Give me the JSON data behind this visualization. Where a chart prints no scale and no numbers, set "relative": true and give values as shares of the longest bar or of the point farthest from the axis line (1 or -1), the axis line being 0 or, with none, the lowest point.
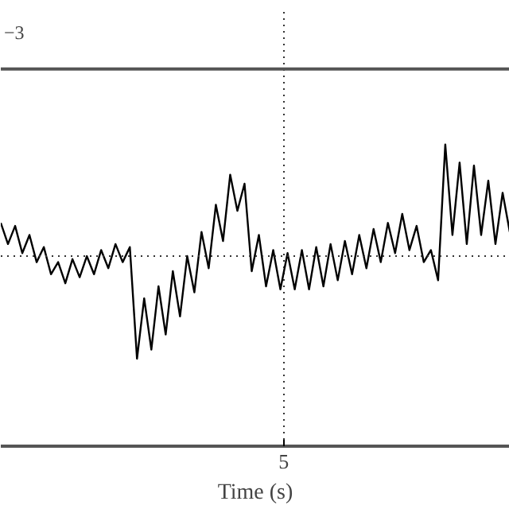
{
  "chart_data": {
    "type": "line",
    "relative": true,
    "xlabel": "Time (s)",
    "annotations": [
      "−3",
      "5"
    ],
    "grid": "x",
    "line_style": "solid",
    "ref_lines": [
      {
        "axis": "y",
        "value": 0.63,
        "line_style": "dotted"
      }
    ],
    "categories": [
      null,
      null,
      null,
      null,
      null,
      null,
      null,
      null,
      null,
      null,
      null,
      null,
      null,
      null,
      null,
      null,
      null,
      null,
      null,
      null,
      null,
      null,
      null,
      null,
      null,
      null,
      null,
      null,
      null,
      null,
      null,
      null,
      null,
      null,
      null,
      null,
      null,
      null,
      null,
      null,
      null,
      null,
      null,
      null,
      null,
      null,
      null,
      null,
      null,
      null,
      null,
      null,
      null,
      null,
      null,
      null,
      null,
      null,
      null,
      null,
      null,
      null,
      null,
      null,
      null,
      null,
      null,
      null,
      null,
      null,
      null,
      null
    ],
    "series": [
      {
        "color": "#000000",
        "values": [
          0.74,
          0.67,
          0.73,
          0.64,
          0.7,
          0.61,
          0.66,
          0.57,
          0.61,
          0.54,
          0.62,
          0.56,
          0.63,
          0.57,
          0.65,
          0.59,
          0.67,
          0.61,
          0.66,
          0.29,
          0.49,
          0.32,
          0.53,
          0.37,
          0.58,
          0.43,
          0.63,
          0.51,
          0.71,
          0.59,
          0.8,
          0.68,
          0.9,
          0.78,
          0.87,
          0.58,
          0.7,
          0.53,
          0.65,
          0.52,
          0.64,
          0.52,
          0.65,
          0.52,
          0.66,
          0.53,
          0.67,
          0.55,
          0.68,
          0.57,
          0.7,
          0.59,
          0.72,
          0.61,
          0.74,
          0.64,
          0.77,
          0.65,
          0.73,
          0.61,
          0.65,
          0.55,
          1.0,
          0.7,
          0.94,
          0.67,
          0.93,
          0.7,
          0.88,
          0.67,
          0.84,
          0.71
        ]
      }
    ]
  }
}
